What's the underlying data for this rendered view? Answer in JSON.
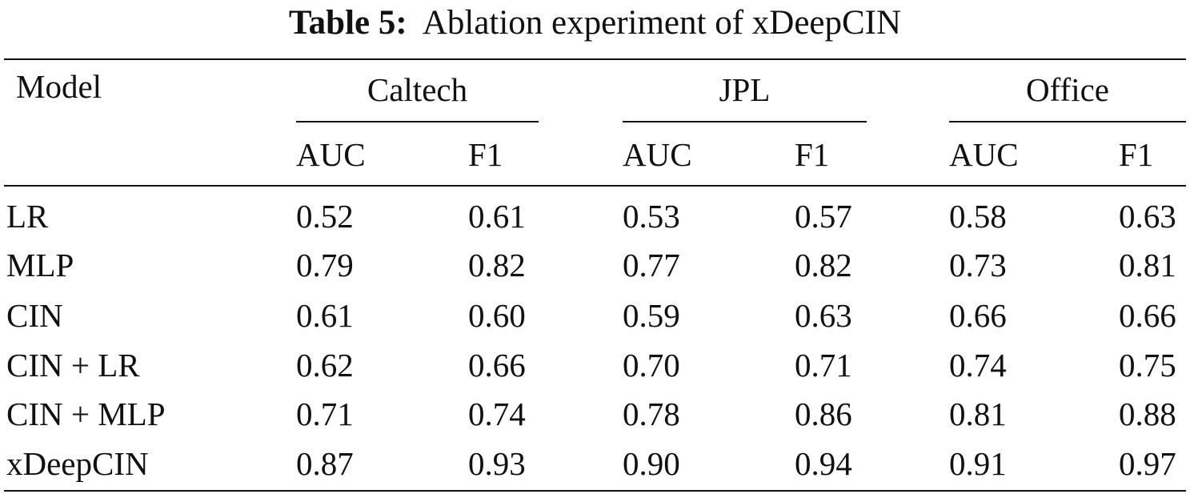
{
  "caption": {
    "label": "Table 5:",
    "text": "Ablation experiment of xDeepCIN"
  },
  "table": {
    "row_header": "Model",
    "groups": [
      {
        "name": "Caltech",
        "metrics": [
          "AUC",
          "F1"
        ]
      },
      {
        "name": "JPL",
        "metrics": [
          "AUC",
          "F1"
        ]
      },
      {
        "name": "Office",
        "metrics": [
          "AUC",
          "F1"
        ]
      }
    ],
    "rows": [
      {
        "model": "LR",
        "values": [
          "0.52",
          "0.61",
          "0.53",
          "0.57",
          "0.58",
          "0.63"
        ]
      },
      {
        "model": "MLP",
        "values": [
          "0.79",
          "0.82",
          "0.77",
          "0.82",
          "0.73",
          "0.81"
        ]
      },
      {
        "model": "CIN",
        "values": [
          "0.61",
          "0.60",
          "0.59",
          "0.63",
          "0.66",
          "0.66"
        ]
      },
      {
        "model": "CIN + LR",
        "values": [
          "0.62",
          "0.66",
          "0.70",
          "0.71",
          "0.74",
          "0.75"
        ]
      },
      {
        "model": "CIN + MLP",
        "values": [
          "0.71",
          "0.74",
          "0.78",
          "0.86",
          "0.81",
          "0.88"
        ]
      },
      {
        "model": "xDeepCIN",
        "values": [
          "0.87",
          "0.93",
          "0.90",
          "0.94",
          "0.91",
          "0.97"
        ]
      }
    ]
  }
}
